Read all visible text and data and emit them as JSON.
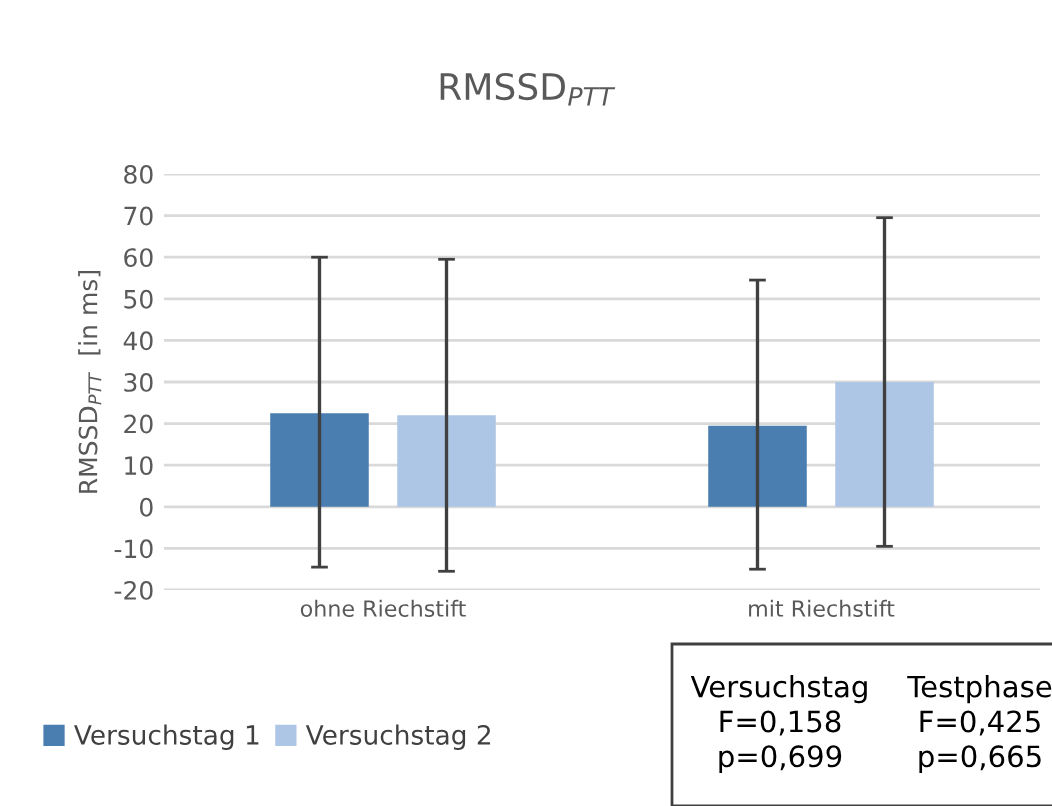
{
  "chart_data": {
    "type": "bar",
    "title": "RMSSD$_{PTT}$",
    "ylabel": "RMSSD$_{PTT}$  [in ms]",
    "categories": [
      "ohne Riechstift",
      "mit Riechstift"
    ],
    "series": [
      {
        "name": "Versuchstag 1",
        "color": "#4a7db0",
        "values": [
          22.5,
          19.5
        ],
        "errors": [
          [
            -14.5,
            60
          ],
          [
            -15,
            54.5
          ]
        ]
      },
      {
        "name": "Versuchstag 2",
        "color": "#adc6e5",
        "values": [
          22,
          30
        ],
        "errors": [
          [
            -15.5,
            59.5
          ],
          [
            -9.5,
            69.5
          ]
        ]
      }
    ],
    "ylim": [
      -20,
      80
    ],
    "yticks": [
      -20,
      -10,
      0,
      10,
      20,
      30,
      40,
      50,
      60,
      70,
      80
    ],
    "grid": "y",
    "legend": "bottom left",
    "annotations": [
      "Versuchstag\nF=0,158\np=0,699",
      "Testphase\nF=0,425\np=0,665"
    ]
  }
}
